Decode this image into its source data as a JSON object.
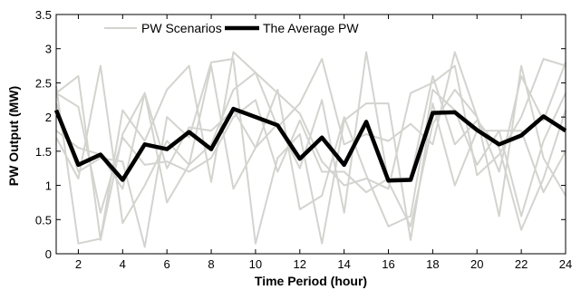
{
  "chart_data": {
    "type": "line",
    "xlabel": "Time Period (hour)",
    "ylabel": "PW Output (MW)",
    "xlim": [
      1,
      24
    ],
    "ylim": [
      0,
      3.5
    ],
    "xticks": [
      2,
      4,
      6,
      8,
      10,
      12,
      14,
      16,
      18,
      20,
      22,
      24
    ],
    "yticks": [
      0,
      0.5,
      1,
      1.5,
      2,
      2.5,
      3,
      3.5
    ],
    "grid": false,
    "legend_position": "top-center",
    "x": [
      1,
      2,
      3,
      4,
      5,
      6,
      7,
      8,
      9,
      10,
      11,
      12,
      13,
      14,
      15,
      16,
      17,
      18,
      19,
      20,
      21,
      22,
      23,
      24
    ],
    "series": [
      {
        "name": "PW Scenarios",
        "color": "#d3d3cf",
        "width": 2,
        "lines": [
          [
            2.45,
            0.15,
            0.22,
            2.1,
            1.65,
            2.4,
            2.75,
            1.05,
            2.95,
            2.65,
            2.35,
            2.05,
            1.35,
            1.0,
            1.1,
            0.95,
            2.35,
            2.5,
            2.75,
            1.15,
            1.45,
            2.0,
            2.85,
            2.75
          ],
          [
            2.35,
            2.6,
            0.2,
            1.75,
            2.35,
            0.75,
            1.3,
            2.75,
            0.95,
            1.55,
            2.4,
            0.65,
            0.85,
            2.0,
            1.15,
            0.4,
            0.55,
            2.4,
            2.1,
            1.3,
            1.8,
            0.55,
            1.65,
            2.35
          ],
          [
            1.7,
            1.1,
            2.75,
            0.45,
            1.0,
            1.65,
            1.3,
            1.6,
            2.4,
            2.65,
            1.85,
            2.2,
            2.85,
            1.6,
            1.75,
            1.65,
            1.9,
            1.6,
            2.95,
            2.0,
            0.55,
            2.75,
            1.4,
            0.85
          ],
          [
            2.2,
            1.2,
            1.4,
            1.35,
            0.1,
            2.0,
            1.7,
            2.8,
            2.85,
            0.15,
            1.4,
            1.75,
            0.15,
            1.95,
            2.2,
            2.2,
            0.2,
            2.2,
            1.0,
            1.8,
            1.8,
            1.8,
            0.9,
            1.5
          ],
          [
            2.35,
            2.15,
            0.6,
            1.7,
            1.3,
            1.35,
            1.2,
            1.4,
            2.0,
            2.25,
            1.2,
            1.95,
            1.2,
            1.2,
            0.9,
            1.1,
            1.1,
            2.6,
            1.6,
            1.95,
            1.55,
            0.35,
            1.1,
            2.1
          ],
          [
            1.8,
            1.55,
            1.45,
            0.95,
            2.35,
            1.25,
            1.85,
            1.8,
            2.1,
            1.55,
            1.9,
            1.25,
            2.25,
            0.6,
            2.95,
            1.05,
            0.4,
            1.9,
            2.4,
            2.0,
            1.2,
            2.6,
            1.95,
            2.8
          ]
        ]
      },
      {
        "name": "The Average PW",
        "color": "#000000",
        "width": 4.5,
        "values": [
          2.1,
          1.3,
          1.45,
          1.08,
          1.6,
          1.53,
          1.78,
          1.53,
          2.12,
          2.0,
          1.88,
          1.39,
          1.7,
          1.3,
          1.93,
          1.07,
          1.08,
          2.06,
          2.07,
          1.81,
          1.6,
          1.73,
          2.01,
          1.8
        ]
      }
    ]
  }
}
